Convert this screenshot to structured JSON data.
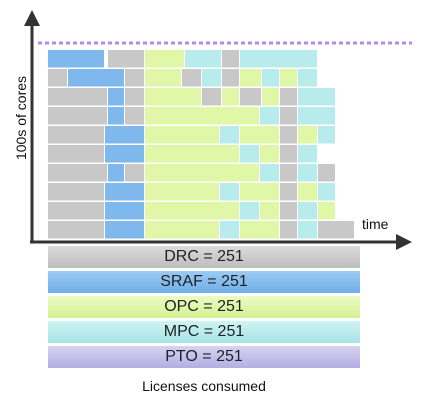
{
  "axes": {
    "y_label": "100s of cores",
    "x_label": "time"
  },
  "colors": {
    "DRC": "#c8c8c8",
    "SRAF": "#7fb8ec",
    "OPC": "#e0f7a8",
    "MPC": "#b8ecec",
    "PTO": "#c3bfe8",
    "limit_line": "#b48ee6"
  },
  "license_bars": [
    {
      "type": "DRC",
      "label": "DRC = 251"
    },
    {
      "type": "SRAF",
      "label": "SRAF = 251"
    },
    {
      "type": "OPC",
      "label": "OPC = 251"
    },
    {
      "type": "MPC",
      "label": "MPC = 251"
    },
    {
      "type": "PTO",
      "label": "PTO = 251"
    }
  ],
  "footer": "Licenses consumed"
}
